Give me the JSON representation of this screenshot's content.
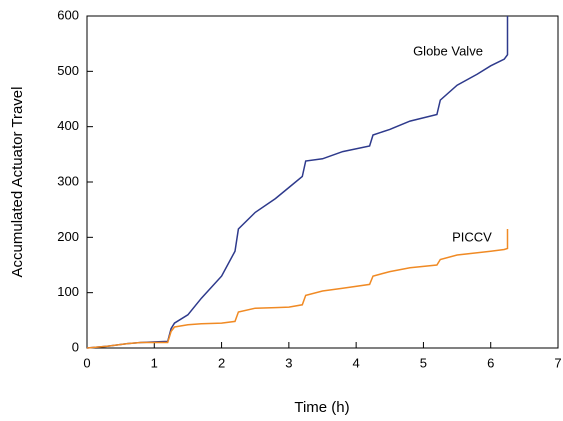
{
  "chart_data": {
    "type": "line",
    "x_label": "Time (h)",
    "y_label": "Accumulated Actuator Travel",
    "x": [
      0,
      0.3,
      0.6,
      0.8,
      1.2,
      1.25,
      1.3,
      1.5,
      1.7,
      2.0,
      2.2,
      2.25,
      2.5,
      2.8,
      3.0,
      3.2,
      3.25,
      3.5,
      3.8,
      4.2,
      4.25,
      4.5,
      4.8,
      5.2,
      5.25,
      5.5,
      5.8,
      6.0,
      6.2,
      6.25,
      6.25
    ],
    "series": [
      {
        "name": "Globe Valve",
        "color": "#2e3a8c",
        "values": [
          0,
          3,
          8,
          10,
          12,
          35,
          45,
          60,
          90,
          130,
          175,
          215,
          245,
          270,
          290,
          310,
          338,
          342,
          355,
          365,
          385,
          395,
          410,
          422,
          448,
          475,
          495,
          510,
          522,
          530,
          600
        ]
      },
      {
        "name": "PICCV",
        "color": "#f08a24",
        "values": [
          0,
          3,
          8,
          10,
          10,
          30,
          38,
          42,
          44,
          45,
          48,
          65,
          72,
          73,
          74,
          78,
          95,
          103,
          108,
          115,
          130,
          138,
          145,
          150,
          160,
          168,
          172,
          175,
          178,
          180,
          215
        ]
      }
    ],
    "xlim": [
      0,
      7
    ],
    "xticks": [
      0,
      1,
      2,
      3,
      4,
      5,
      6,
      7
    ],
    "ylim": [
      0,
      600
    ],
    "yticks": [
      0,
      100,
      200,
      300,
      400,
      500,
      600
    ],
    "grid": false
  }
}
